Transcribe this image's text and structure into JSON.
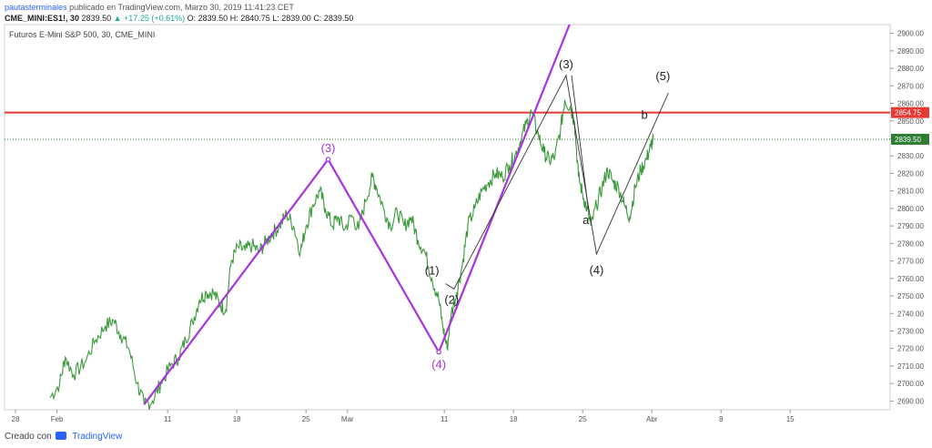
{
  "header": {
    "author": "pautasterminales",
    "published": "publicado en TradingView.com, Marzo 30, 2019 11:41:23 CET",
    "symbol_line": "CME_MINI:ES1!, 30",
    "quote": "2839.50",
    "change": "+17.25 (+0.61%)",
    "open": "O: 2839.50",
    "high": "H: 2840.75",
    "low": "L: 2839.00",
    "close": "C: 2839.50"
  },
  "footer": {
    "created_with": "Creado con",
    "brand": "TradingView"
  },
  "chart_data": {
    "type": "line",
    "title": "Futuros E-Mini S&P 500, 30, CME_MINI",
    "ylim": [
      2685,
      2905
    ],
    "y_ticks": [
      2690,
      2700,
      2710,
      2720,
      2730,
      2740,
      2750,
      2760,
      2770,
      2780,
      2790,
      2800,
      2810,
      2820,
      2830,
      2840,
      2850,
      2860,
      2870,
      2880,
      2890,
      2900
    ],
    "x_ticks": [
      {
        "label": "28",
        "x": 0
      },
      {
        "label": "Feb",
        "x": 3
      },
      {
        "label": "11",
        "x": 11
      },
      {
        "label": "18",
        "x": 16
      },
      {
        "label": "25",
        "x": 21
      },
      {
        "label": "Mar",
        "x": 24
      },
      {
        "label": "11",
        "x": 31
      },
      {
        "label": "18",
        "x": 36
      },
      {
        "label": "25",
        "x": 41
      },
      {
        "label": "Abr",
        "x": 46
      },
      {
        "label": "8",
        "x": 51
      },
      {
        "label": "15",
        "x": 56
      }
    ],
    "price_series": [
      [
        2.5,
        2692
      ],
      [
        3.2,
        2700
      ],
      [
        3.6,
        2715
      ],
      [
        4.2,
        2705
      ],
      [
        5.0,
        2712
      ],
      [
        5.8,
        2725
      ],
      [
        6.5,
        2733
      ],
      [
        7.1,
        2736
      ],
      [
        7.6,
        2728
      ],
      [
        8.2,
        2720
      ],
      [
        8.8,
        2700
      ],
      [
        9.3,
        2688
      ],
      [
        9.9,
        2690
      ],
      [
        10.5,
        2700
      ],
      [
        11.2,
        2710
      ],
      [
        11.8,
        2715
      ],
      [
        12.3,
        2725
      ],
      [
        12.8,
        2735
      ],
      [
        13.3,
        2748
      ],
      [
        13.8,
        2752
      ],
      [
        14.3,
        2752
      ],
      [
        14.8,
        2745
      ],
      [
        15.2,
        2742
      ],
      [
        15.6,
        2770
      ],
      [
        16.1,
        2778
      ],
      [
        16.6,
        2776
      ],
      [
        17.1,
        2779
      ],
      [
        17.6,
        2775
      ],
      [
        18.1,
        2781
      ],
      [
        18.6,
        2786
      ],
      [
        19.1,
        2790
      ],
      [
        19.6,
        2797
      ],
      [
        20.1,
        2790
      ],
      [
        20.6,
        2775
      ],
      [
        21.0,
        2790
      ],
      [
        21.5,
        2802
      ],
      [
        22.0,
        2810
      ],
      [
        22.4,
        2800
      ],
      [
        22.9,
        2790
      ],
      [
        23.3,
        2795
      ],
      [
        23.8,
        2788
      ],
      [
        24.3,
        2796
      ],
      [
        24.8,
        2788
      ],
      [
        25.3,
        2804
      ],
      [
        25.8,
        2818
      ],
      [
        26.1,
        2812
      ],
      [
        26.6,
        2800
      ],
      [
        27.1,
        2790
      ],
      [
        27.6,
        2798
      ],
      [
        28.1,
        2790
      ],
      [
        28.6,
        2795
      ],
      [
        29.1,
        2782
      ],
      [
        29.6,
        2775
      ],
      [
        30.1,
        2760
      ],
      [
        30.6,
        2748
      ],
      [
        30.9,
        2732
      ],
      [
        31.2,
        2720
      ],
      [
        31.5,
        2740
      ],
      [
        31.9,
        2752
      ],
      [
        32.3,
        2768
      ],
      [
        32.7,
        2790
      ],
      [
        33.2,
        2800
      ],
      [
        33.7,
        2810
      ],
      [
        34.2,
        2815
      ],
      [
        34.7,
        2820
      ],
      [
        35.2,
        2818
      ],
      [
        35.7,
        2825
      ],
      [
        36.1,
        2830
      ],
      [
        36.5,
        2838
      ],
      [
        36.9,
        2848
      ],
      [
        37.3,
        2855
      ],
      [
        37.8,
        2842
      ],
      [
        38.2,
        2832
      ],
      [
        38.6,
        2827
      ],
      [
        39.0,
        2830
      ],
      [
        39.4,
        2845
      ],
      [
        39.7,
        2862
      ],
      [
        40.1,
        2858
      ],
      [
        40.4,
        2850
      ],
      [
        40.7,
        2818
      ],
      [
        41.0,
        2808
      ],
      [
        41.3,
        2800
      ],
      [
        41.6,
        2790
      ],
      [
        42.0,
        2802
      ],
      [
        42.4,
        2812
      ],
      [
        42.8,
        2822
      ],
      [
        43.2,
        2815
      ],
      [
        43.6,
        2812
      ],
      [
        44.0,
        2802
      ],
      [
        44.4,
        2795
      ],
      [
        44.8,
        2812
      ],
      [
        45.2,
        2822
      ],
      [
        45.6,
        2828
      ],
      [
        45.9,
        2835
      ],
      [
        46.1,
        2839.5
      ]
    ],
    "wave_labels_purple": [
      {
        "text": "(3)",
        "x": 22.6,
        "y": 2828
      },
      {
        "text": "(4)",
        "x": 30.6,
        "y": 2718
      }
    ],
    "wave_labels_black": [
      {
        "text": "(1)",
        "x": 30.9,
        "y": 2757
      },
      {
        "text": "(2)",
        "x": 31.4,
        "y": 2754
      },
      {
        "text": "(3)",
        "x": 39.8,
        "y": 2876
      },
      {
        "text": "a",
        "x": 41.5,
        "y": 2786
      },
      {
        "text": "(4)",
        "x": 42.0,
        "y": 2774
      },
      {
        "text": "b",
        "x": 45.6,
        "y": 2848
      },
      {
        "text": "(5)",
        "x": 46.8,
        "y": 2868
      }
    ],
    "purple_wave_line": [
      [
        9.3,
        2688
      ],
      [
        22.6,
        2828
      ],
      [
        30.6,
        2718
      ],
      [
        40.2,
        2908
      ]
    ],
    "black_wave_line": [
      [
        31.1,
        2757
      ],
      [
        31.7,
        2754
      ],
      [
        39.8,
        2876
      ],
      [
        42.0,
        2774
      ],
      [
        47.2,
        2866
      ]
    ],
    "black_wave_line2": [
      [
        40.2,
        2876
      ],
      [
        41.4,
        2800
      ]
    ],
    "resistance": {
      "value": 2854.75,
      "label": "2854.75",
      "color": "#e53935"
    },
    "last_price": {
      "value": 2839.5,
      "label": "2839.50",
      "color": "#2e7d32"
    },
    "colors": {
      "price": "#3a9a3a",
      "purple": "#aa33dd",
      "black": "#333333"
    }
  }
}
